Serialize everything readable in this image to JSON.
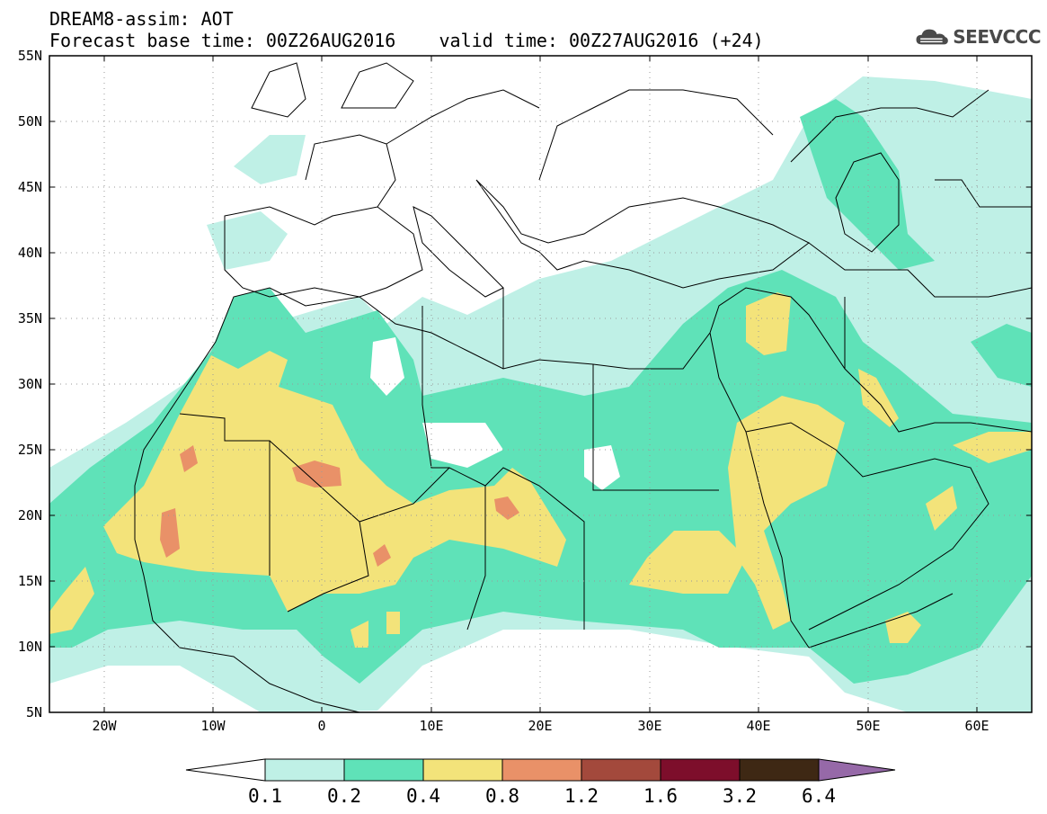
{
  "header": {
    "title": "DREAM8-assim: AOT",
    "base_label": "Forecast base time: 00Z26AUG2016",
    "valid_label": "valid time: 00Z27AUG2016 (+24)"
  },
  "logo": {
    "text": "SEEVCCC",
    "icon": "cloud-icon"
  },
  "map": {
    "lon_range": [
      -25,
      65
    ],
    "lat_range": [
      5,
      55
    ],
    "lat_ticks": [
      "55N",
      "50N",
      "45N",
      "40N",
      "35N",
      "30N",
      "25N",
      "20N",
      "15N",
      "10N",
      "5N"
    ],
    "lon_ticks": [
      "20W",
      "10W",
      "0",
      "10E",
      "20E",
      "30E",
      "40E",
      "50E",
      "60E"
    ],
    "gridlines": "dotted"
  },
  "colorbar": {
    "labels": [
      "0.1",
      "0.2",
      "0.4",
      "0.8",
      "1.2",
      "1.6",
      "3.2",
      "6.4"
    ],
    "colors": [
      "#ffffff",
      "#bff0e6",
      "#5fe2b8",
      "#f3e37a",
      "#e99168",
      "#a3493c",
      "#7d0e2b",
      "#3e2814",
      "#9669a8"
    ]
  }
}
